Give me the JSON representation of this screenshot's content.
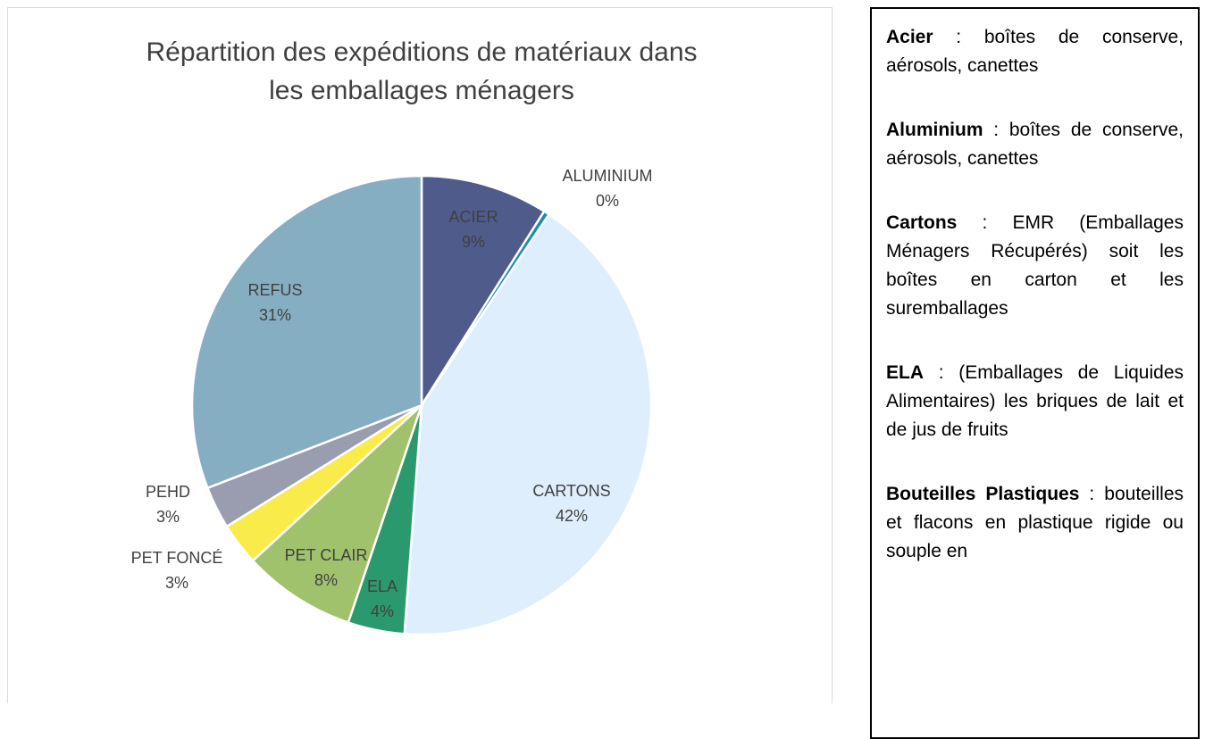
{
  "chart_data": {
    "type": "pie",
    "title": "Répartition des expéditions de matériaux dans les emballages ménagers",
    "categories": [
      "ACIER",
      "ALUMINIUM",
      "CARTONS",
      "ELA",
      "PET CLAIR",
      "PET FONCÉ",
      "PEHD",
      "REFUS"
    ],
    "values": [
      9,
      0.4,
      42,
      4,
      8,
      3,
      3,
      31
    ],
    "value_labels": [
      "9%",
      "0%",
      "42%",
      "4%",
      "8%",
      "3%",
      "3%",
      "31%"
    ],
    "colors": [
      "#4f5b8a",
      "#1a8fa8",
      "#deeefc",
      "#2a9a6e",
      "#a0c26c",
      "#f9ec4a",
      "#9a9cb0",
      "#86aec3"
    ]
  },
  "notes": [
    {
      "term": "Acier",
      "text": " : boîtes de conserve, aérosols, canettes"
    },
    {
      "term": "Aluminium",
      "text": " : boîtes de conserve, aérosols, canettes"
    },
    {
      "term": "Cartons",
      "text": " : EMR (Emballages Ménagers Récupérés) soit les boîtes en carton et les suremballages"
    },
    {
      "term": "ELA",
      "text": " : (Emballages de Liquides Alimentaires) les briques de lait et de jus de fruits"
    },
    {
      "term": "Bouteilles Plastiques",
      "text": " : bouteilles et flacons en plastique rigide ou souple en"
    }
  ]
}
